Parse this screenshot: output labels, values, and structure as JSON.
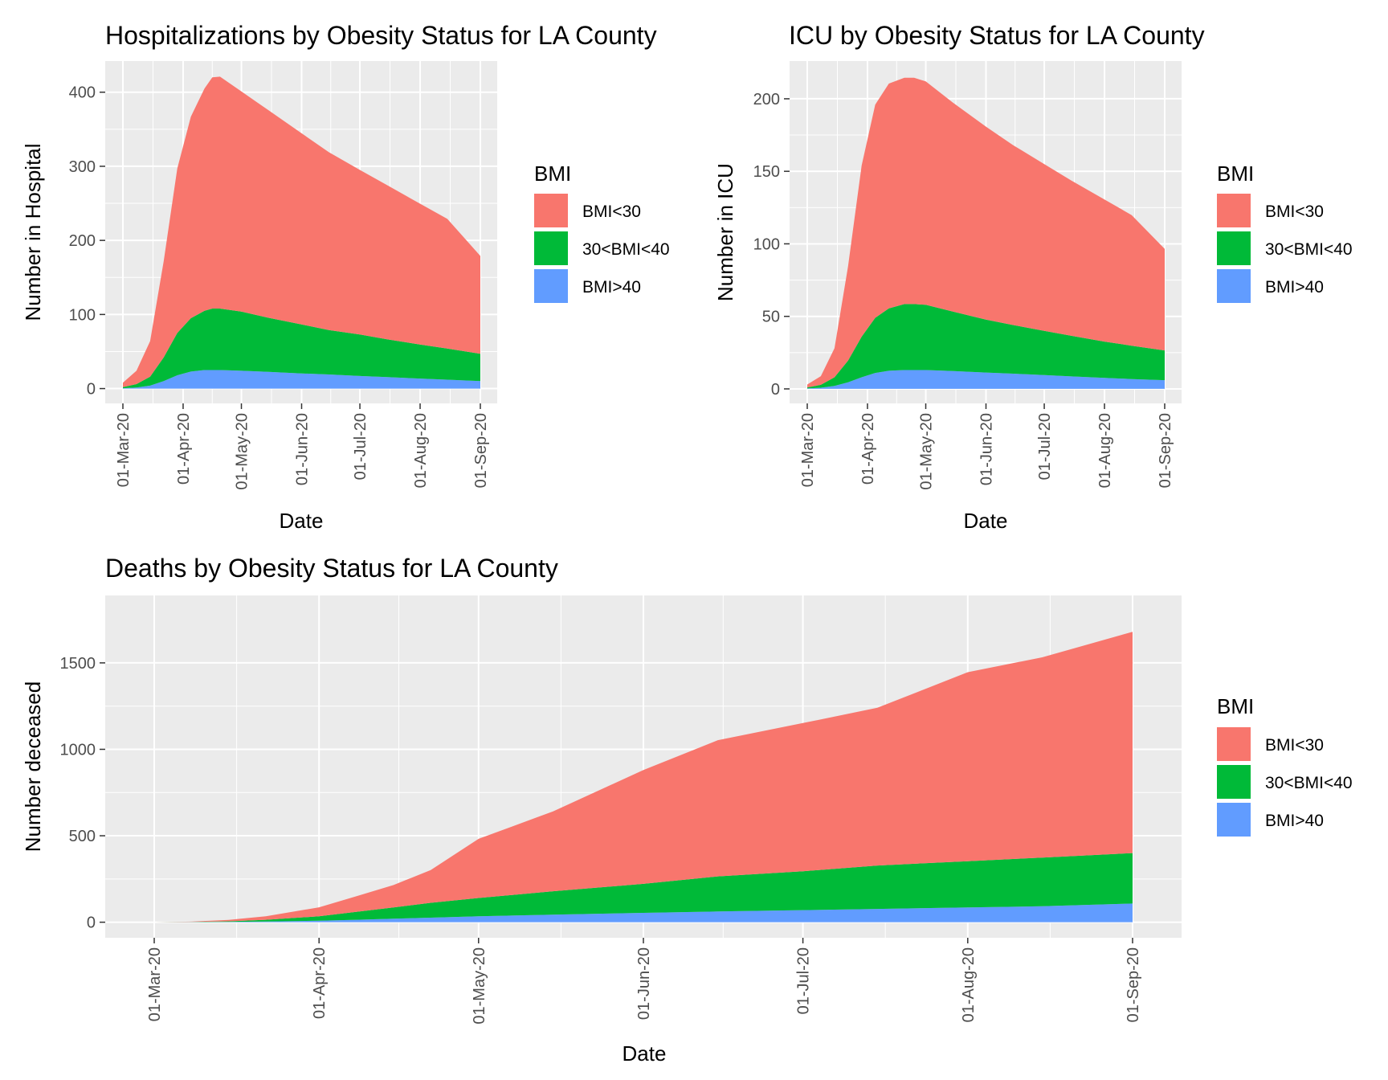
{
  "chart_data": [
    {
      "type": "area",
      "stacked": true,
      "title": "Hospitalizations by Obesity Status for LA County",
      "xlabel": "Date",
      "ylabel": "Number in Hospital",
      "x_ticks": [
        "01-Mar-20",
        "01-Apr-20",
        "01-May-20",
        "01-Jun-20",
        "01-Jul-20",
        "01-Aug-20",
        "01-Sep-20"
      ],
      "y_ticks": [
        0,
        100,
        200,
        300,
        400
      ],
      "ylim": [
        -20,
        442
      ],
      "grid": true,
      "legend": {
        "title": "BMI",
        "placement": "right"
      },
      "x": [
        "2020-03-01",
        "2020-03-08",
        "2020-03-15",
        "2020-03-22",
        "2020-03-29",
        "2020-04-05",
        "2020-04-12",
        "2020-04-16",
        "2020-04-20",
        "2020-05-01",
        "2020-05-15",
        "2020-06-01",
        "2020-06-15",
        "2020-07-01",
        "2020-07-15",
        "2020-08-01",
        "2020-08-15",
        "2020-09-01"
      ],
      "series": [
        {
          "name": "BMI>40",
          "color": "#619CFF",
          "values": [
            0.5,
            1.5,
            4,
            10,
            18,
            23,
            25,
            25,
            25,
            24,
            22.5,
            20.5,
            19,
            17,
            15.5,
            13.5,
            12,
            10
          ]
        },
        {
          "name": "30<BMI<40",
          "color": "#00BA38",
          "values": [
            1.5,
            4.5,
            12,
            32,
            57,
            72,
            80,
            83,
            83,
            80,
            73,
            66,
            60,
            56,
            51,
            46,
            42,
            37
          ]
        },
        {
          "name": "BMI<30",
          "color": "#F8766D",
          "values": [
            6,
            18,
            48,
            130,
            222,
            272,
            300,
            312,
            313,
            297,
            280,
            258,
            240,
            222,
            208,
            190,
            175,
            132
          ]
        }
      ]
    },
    {
      "type": "area",
      "stacked": true,
      "title": "ICU by Obesity Status for LA County",
      "xlabel": "Date",
      "ylabel": "Number in ICU",
      "x_ticks": [
        "01-Mar-20",
        "01-Apr-20",
        "01-May-20",
        "01-Jun-20",
        "01-Jul-20",
        "01-Aug-20",
        "01-Sep-20"
      ],
      "y_ticks": [
        0,
        50,
        100,
        150,
        200
      ],
      "ylim": [
        -10,
        226
      ],
      "grid": true,
      "legend": {
        "title": "BMI",
        "placement": "right"
      },
      "x": [
        "2020-03-01",
        "2020-03-08",
        "2020-03-15",
        "2020-03-22",
        "2020-03-29",
        "2020-04-05",
        "2020-04-12",
        "2020-04-20",
        "2020-04-25",
        "2020-05-01",
        "2020-05-15",
        "2020-06-01",
        "2020-06-15",
        "2020-07-01",
        "2020-07-15",
        "2020-08-01",
        "2020-08-15",
        "2020-09-01"
      ],
      "series": [
        {
          "name": "BMI>40",
          "color": "#619CFF",
          "values": [
            0.3,
            0.8,
            2,
            4.5,
            8,
            11,
            12.5,
            13,
            13,
            13,
            12.3,
            11.3,
            10.5,
            9.5,
            8.6,
            7.6,
            6.8,
            6
          ]
        },
        {
          "name": "30<BMI<40",
          "color": "#00BA38",
          "values": [
            0.7,
            2,
            6,
            15,
            28,
            38,
            43,
            45.5,
            45.5,
            45,
            41,
            36.5,
            33.5,
            30.5,
            28,
            25,
            23,
            20.5
          ]
        },
        {
          "name": "BMI<30",
          "color": "#F8766D",
          "values": [
            2,
            6,
            20,
            65,
            118,
            147,
            155,
            156,
            156,
            154,
            144,
            133,
            124,
            115,
            107,
            98,
            90,
            70
          ]
        }
      ]
    },
    {
      "type": "area",
      "stacked": true,
      "title": "Deaths by Obesity Status for LA County",
      "xlabel": "Date",
      "ylabel": "Number deceased",
      "x_ticks": [
        "01-Mar-20",
        "01-Apr-20",
        "01-May-20",
        "01-Jun-20",
        "01-Jul-20",
        "01-Aug-20",
        "01-Sep-20"
      ],
      "y_ticks": [
        0,
        500,
        1000,
        1500
      ],
      "ylim": [
        -90,
        1890
      ],
      "grid": true,
      "legend": {
        "title": "BMI",
        "placement": "right"
      },
      "x": [
        "2020-03-01",
        "2020-03-08",
        "2020-03-15",
        "2020-03-22",
        "2020-04-01",
        "2020-04-08",
        "2020-04-15",
        "2020-04-22",
        "2020-05-01",
        "2020-05-15",
        "2020-06-01",
        "2020-06-15",
        "2020-07-01",
        "2020-07-15",
        "2020-08-01",
        "2020-08-15",
        "2020-09-01"
      ],
      "series": [
        {
          "name": "BMI>40",
          "color": "#619CFF",
          "values": [
            0,
            0.5,
            1.5,
            4,
            9,
            14,
            20,
            26,
            34,
            44,
            54,
            62,
            70,
            77,
            85,
            92,
            108
          ]
        },
        {
          "name": "30<BMI<40",
          "color": "#00BA38",
          "values": [
            0,
            1,
            4,
            10,
            25,
            46,
            65,
            86,
            106,
            135,
            168,
            203,
            225,
            251,
            268,
            282,
            292
          ]
        },
        {
          "name": "BMI<30",
          "color": "#F8766D",
          "values": [
            0,
            2,
            8,
            20,
            52,
            90,
            130,
            190,
            342,
            462,
            658,
            788,
            857,
            912,
            1093,
            1158,
            1280
          ]
        }
      ]
    }
  ],
  "legend": {
    "title": "BMI",
    "items": [
      {
        "label": "BMI<30",
        "color": "#F8766D"
      },
      {
        "label": "30<BMI<40",
        "color": "#00BA38"
      },
      {
        "label": "BMI>40",
        "color": "#619CFF"
      }
    ]
  }
}
